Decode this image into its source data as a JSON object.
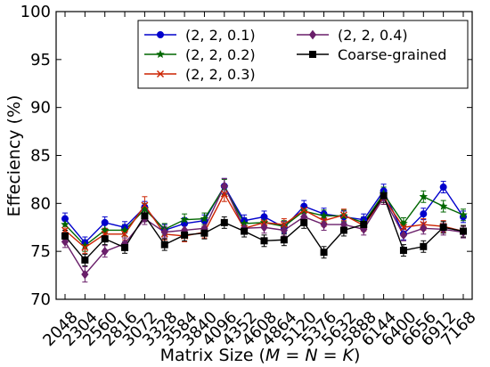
{
  "chart_data": {
    "type": "line",
    "title": "",
    "xlabel": "Matrix Size (M = N = K)",
    "xlabel_parts": {
      "prefix": "Matrix Size (",
      "var1": "M",
      "eq1": " = ",
      "var2": "N",
      "eq2": " = ",
      "var3": "K",
      "suffix": ")"
    },
    "ylabel": "Effeciency (%)",
    "ylim": [
      70,
      100
    ],
    "yticks": [
      70,
      75,
      80,
      85,
      90,
      95,
      100
    ],
    "categories": [
      "2048",
      "2304",
      "2560",
      "2816",
      "3072",
      "3328",
      "3584",
      "3840",
      "4096",
      "4352",
      "4608",
      "4864",
      "5120",
      "5376",
      "5632",
      "5888",
      "6144",
      "6400",
      "6656",
      "6912",
      "7168"
    ],
    "grid": false,
    "legend": {
      "placement": "top-right",
      "columns": 2
    },
    "series": [
      {
        "name": "(2, 2, 0.1)",
        "color": "#0000cc",
        "marker": "circle",
        "values": [
          78.4,
          75.9,
          78.0,
          77.5,
          79.6,
          77.2,
          77.9,
          78.2,
          81.8,
          78.2,
          78.6,
          77.5,
          79.7,
          78.9,
          78.6,
          78.3,
          81.3,
          76.8,
          78.9,
          81.7,
          78.6
        ],
        "errors": [
          0.6,
          0.6,
          0.6,
          0.6,
          0.6,
          0.6,
          0.6,
          0.6,
          0.8,
          0.6,
          0.6,
          0.6,
          0.6,
          0.6,
          0.6,
          0.6,
          0.7,
          0.6,
          0.6,
          0.6,
          0.6
        ]
      },
      {
        "name": "(2, 2, 0.2)",
        "color": "#006600",
        "marker": "star",
        "values": [
          77.8,
          75.6,
          77.2,
          77.2,
          79.4,
          77.3,
          78.3,
          78.4,
          81.7,
          77.9,
          78.0,
          77.6,
          79.2,
          78.7,
          78.7,
          78.0,
          81.0,
          77.9,
          80.7,
          79.7,
          78.8
        ],
        "errors": [
          0.6,
          0.6,
          0.6,
          0.6,
          0.6,
          0.6,
          0.6,
          0.6,
          0.8,
          0.6,
          0.6,
          0.6,
          0.6,
          0.6,
          0.6,
          0.6,
          0.7,
          0.6,
          0.6,
          0.6,
          0.6
        ]
      },
      {
        "name": "(2, 2, 0.3)",
        "color": "#cc2200",
        "marker": "x",
        "values": [
          77.2,
          75.4,
          76.8,
          76.8,
          79.8,
          76.8,
          76.6,
          77.0,
          81.0,
          77.4,
          78.0,
          77.8,
          79.3,
          78.2,
          78.8,
          77.7,
          80.6,
          77.5,
          77.8,
          77.6,
          77.1
        ],
        "errors": [
          0.6,
          0.6,
          0.6,
          0.6,
          0.9,
          0.6,
          0.6,
          0.6,
          0.8,
          0.6,
          0.6,
          0.6,
          0.6,
          0.6,
          0.6,
          0.6,
          0.7,
          0.6,
          0.6,
          0.6,
          0.6
        ]
      },
      {
        "name": "(2, 2, 0.4)",
        "color": "#6a1f6a",
        "marker": "diamond",
        "values": [
          76.0,
          72.6,
          75.0,
          75.8,
          78.4,
          77.0,
          77.2,
          77.4,
          81.8,
          77.4,
          77.5,
          77.2,
          78.6,
          77.8,
          77.8,
          77.3,
          80.6,
          76.7,
          77.4,
          77.3,
          77.0
        ],
        "errors": [
          0.6,
          0.8,
          0.6,
          0.6,
          0.6,
          0.6,
          0.6,
          0.6,
          0.8,
          0.6,
          0.6,
          0.6,
          0.6,
          0.6,
          0.6,
          0.6,
          0.7,
          0.6,
          0.6,
          0.6,
          0.6
        ]
      },
      {
        "name": "Coarse-grained",
        "color": "#000000",
        "marker": "square",
        "values": [
          76.6,
          74.1,
          76.3,
          75.4,
          78.7,
          75.7,
          76.7,
          76.9,
          78.0,
          77.1,
          76.1,
          76.2,
          78.0,
          74.9,
          77.2,
          77.8,
          80.8,
          75.1,
          75.5,
          77.5,
          77.1
        ],
        "errors": [
          0.6,
          0.6,
          0.6,
          0.6,
          0.6,
          0.6,
          0.6,
          0.6,
          0.6,
          0.6,
          0.6,
          0.6,
          0.6,
          0.6,
          0.6,
          0.6,
          0.7,
          0.6,
          0.6,
          0.6,
          0.6
        ]
      }
    ]
  }
}
